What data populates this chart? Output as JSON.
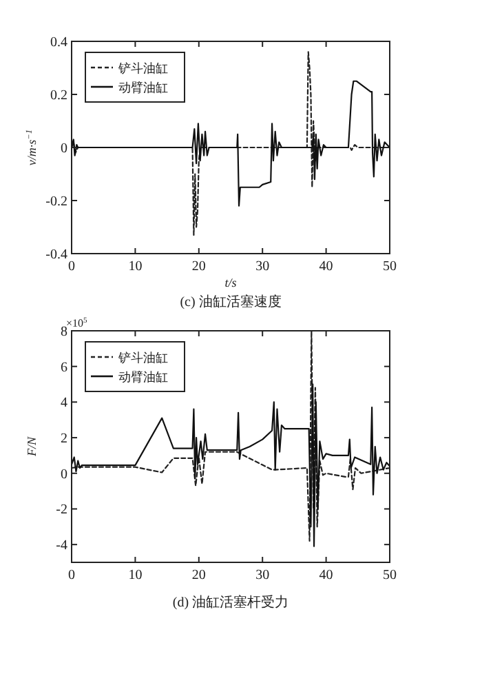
{
  "chart_data": [
    {
      "type": "line",
      "xlabel": "t/s",
      "ylabel": "v/m·s$^{−1}$",
      "xlim": [
        0,
        50
      ],
      "ylim": [
        -0.4,
        0.4
      ],
      "xticks": [
        0,
        10,
        20,
        30,
        40,
        50
      ],
      "yticks": [
        -0.4,
        -0.2,
        0,
        0.2,
        0.4
      ],
      "grid": false,
      "legend": "top left",
      "annotations": [
        "(c) 油缸活塞速度"
      ],
      "series": [
        {
          "name": "铲斗油缸",
          "color": "#222222",
          "line_style": "dashed",
          "x": [
            0,
            0.3,
            0.6,
            1,
            19,
            19.2,
            19.4,
            19.6,
            19.8,
            20,
            20.2,
            37,
            37.2,
            37.4,
            37.6,
            37.8,
            38,
            38.3,
            38.6,
            43.8,
            44,
            44.5,
            45,
            50
          ],
          "values": [
            0,
            0.02,
            -0.02,
            0,
            0,
            -0.33,
            -0.1,
            -0.3,
            -0.24,
            -0.05,
            0,
            0,
            0.36,
            0.3,
            0.2,
            -0.15,
            0.1,
            -0.05,
            0,
            0,
            -0.01,
            0.01,
            0,
            0
          ]
        },
        {
          "name": "动臂油缸",
          "color": "#111111",
          "line_style": "solid",
          "x": [
            0,
            0.3,
            0.5,
            0.8,
            1,
            19,
            19.3,
            19.6,
            19.9,
            20.2,
            20.5,
            20.8,
            21,
            21.3,
            21.6,
            26,
            26.1,
            26.3,
            26.5,
            28,
            29.5,
            30,
            31.3,
            31.5,
            31.7,
            32,
            32.3,
            32.6,
            33,
            37.8,
            38,
            38.2,
            38.4,
            38.6,
            38.8,
            39.2,
            39.6,
            40,
            43.5,
            44,
            44.3,
            44.8,
            47,
            47.2,
            47.3,
            47.5,
            47.7,
            48,
            48.3,
            48.7,
            49.2,
            50
          ],
          "values": [
            0,
            0.03,
            -0.03,
            0.01,
            0,
            0,
            0.07,
            -0.06,
            0.09,
            -0.05,
            0.05,
            -0.03,
            0.06,
            -0.03,
            0,
            0,
            0.05,
            -0.22,
            -0.15,
            -0.15,
            -0.15,
            -0.14,
            -0.13,
            0.09,
            -0.05,
            0.06,
            -0.03,
            0.02,
            0,
            0,
            0.04,
            -0.12,
            0.05,
            -0.08,
            0.03,
            -0.03,
            0.01,
            0,
            0,
            0.2,
            0.25,
            0.25,
            0.21,
            0.21,
            -0.02,
            -0.11,
            0.05,
            -0.05,
            0.03,
            -0.03,
            0.02,
            0
          ]
        }
      ]
    },
    {
      "type": "line",
      "ylabel": "F/N",
      "xlim": [
        0,
        50
      ],
      "ylim": [
        -5,
        8
      ],
      "xticks": [
        0,
        10,
        20,
        30,
        40,
        50
      ],
      "yticks": [
        -4,
        -2,
        0,
        2,
        4,
        6,
        8
      ],
      "grid": false,
      "legend": "top left",
      "annotations": [
        "×10$^{5}$",
        "(d) 油缸活塞杆受力"
      ],
      "series": [
        {
          "name": "铲斗油缸",
          "color": "#222222",
          "line_style": "dashed",
          "x": [
            0,
            1,
            10,
            14.2,
            16,
            19,
            19.5,
            20,
            20.5,
            21,
            26,
            26.5,
            31.5,
            32,
            37,
            37.4,
            37.7,
            38,
            38.3,
            38.6,
            39,
            39.5,
            40,
            43,
            43.5,
            43.8,
            44.2,
            44.6,
            45.5,
            50
          ],
          "values": [
            0.3,
            0.35,
            0.35,
            0.05,
            0.85,
            0.85,
            -0.7,
            0.9,
            -0.6,
            1.2,
            1.2,
            1.1,
            0.2,
            0.2,
            0.3,
            -3.8,
            8,
            -2,
            4.8,
            -3,
            0.7,
            -0.1,
            0,
            -0.2,
            -0.2,
            0.8,
            -0.9,
            0.3,
            0,
            0.3
          ]
        },
        {
          "name": "动臂油缸",
          "color": "#111111",
          "line_style": "solid",
          "x": [
            0,
            0.4,
            0.7,
            1,
            1.3,
            1.6,
            10,
            14.2,
            16,
            19,
            19.2,
            19.4,
            19.6,
            19.8,
            20.3,
            20.6,
            21,
            21.3,
            26,
            26.2,
            26.4,
            26.6,
            28,
            30,
            31.5,
            31.8,
            32,
            32.3,
            32.7,
            33,
            33.5,
            37,
            37.3,
            37.6,
            37.9,
            38.1,
            38.4,
            38.7,
            39,
            39.5,
            40,
            41,
            43.5,
            43.7,
            43.9,
            44.5,
            47,
            47.2,
            47.4,
            47.7,
            48,
            48.5,
            49,
            49.5,
            50
          ],
          "values": [
            0.5,
            0.9,
            0.1,
            0.7,
            0.3,
            0.45,
            0.45,
            3.1,
            1.4,
            1.4,
            3.6,
            -0.3,
            2,
            0.5,
            1.8,
            0.8,
            2.2,
            1.3,
            1.3,
            3.4,
            0.8,
            1.3,
            1.5,
            1.9,
            2.4,
            4,
            0.2,
            3.6,
            1.2,
            2.7,
            2.5,
            2.5,
            2.5,
            -3,
            5,
            -4.1,
            4,
            -2,
            1.8,
            0.8,
            1.1,
            1,
            1,
            1.9,
            0.3,
            0.9,
            0.5,
            3.7,
            -1.2,
            1.5,
            0,
            0.9,
            0.2,
            0.6,
            0.4
          ]
        }
      ]
    }
  ]
}
